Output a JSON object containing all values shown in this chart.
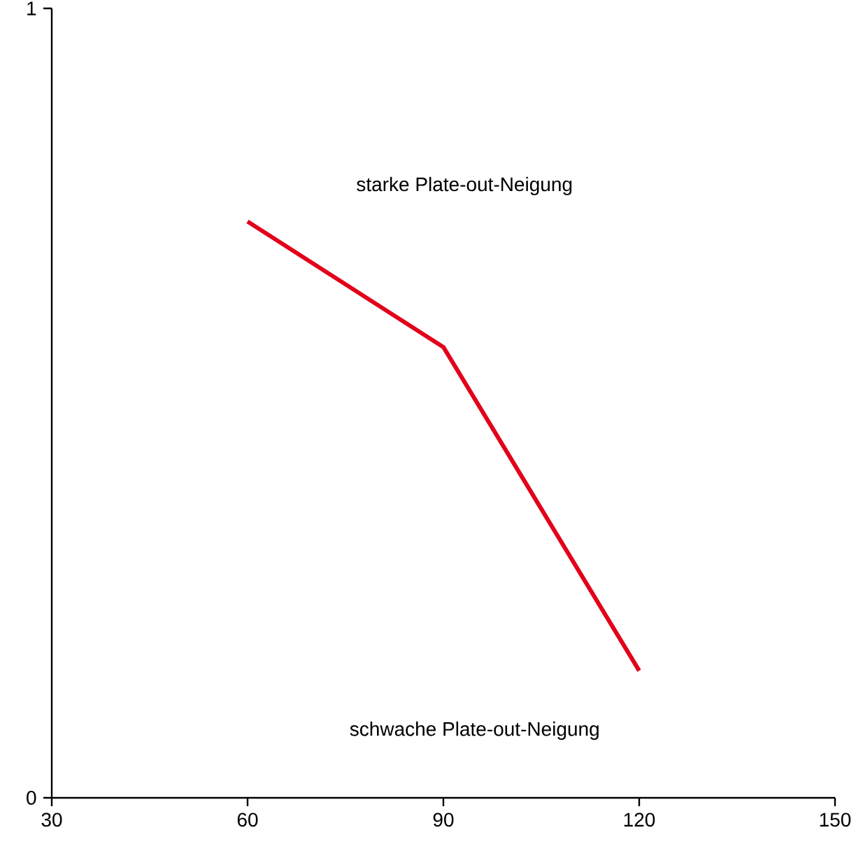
{
  "chart_data": {
    "type": "line",
    "x": [
      60,
      90,
      120
    ],
    "series": [
      {
        "color": "#e2001a",
        "values": [
          0.73,
          0.571,
          0.161
        ]
      }
    ],
    "xlim": [
      30,
      150
    ],
    "ylim": [
      0,
      1
    ],
    "xticks": [
      30,
      60,
      90,
      120,
      150
    ],
    "yticks": [
      0,
      1
    ],
    "annotations": [
      "starke Plate-out-Neigung",
      "schwache Plate-out-Neigung"
    ],
    "grid": false,
    "marker": "none",
    "line_style": "solid"
  }
}
